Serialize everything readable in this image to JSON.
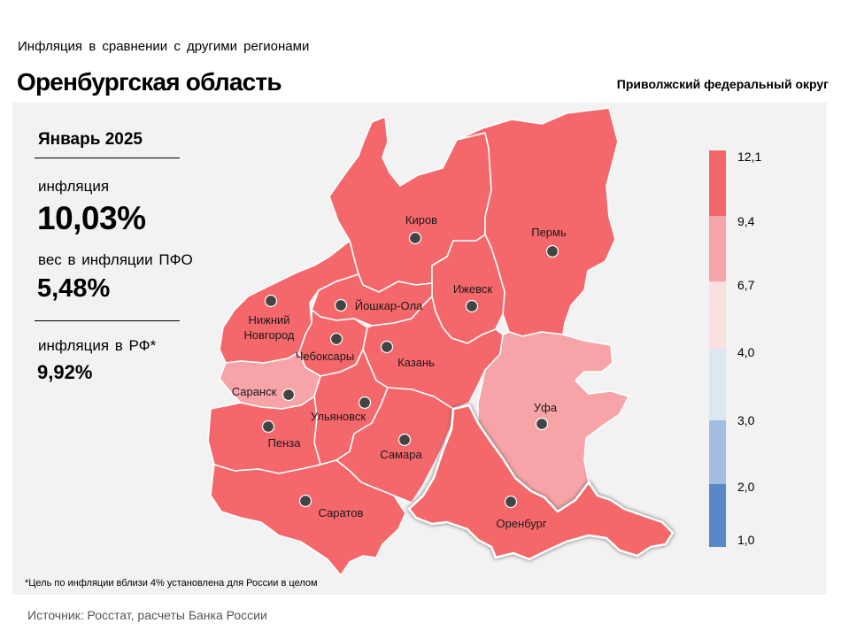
{
  "header": {
    "subtitle": "Инфляция  в сравнении  с другими  регионами",
    "title": "Оренбургская область",
    "district": "Приволжский федеральный округ"
  },
  "stats": {
    "period": "Январь 2025",
    "inflation_label": "инфляция",
    "inflation_value": "10,03%",
    "weight_label": "вес в инфляции  ПФО",
    "weight_value": "5,48%",
    "russia_label": "инфляция  в РФ*",
    "russia_value": "9,92%"
  },
  "legend": {
    "bins": [
      {
        "label": "12,1",
        "color": "#f4676b"
      },
      {
        "label": "9,4",
        "color": "#f6a4a7"
      },
      {
        "label": "6,7",
        "color": "#fadfe3"
      },
      {
        "label": "4,0",
        "color": "#dde6f3"
      },
      {
        "label": "3,0",
        "color": "#a3bde0"
      },
      {
        "label": "2,0",
        "color": "#5b87c7"
      },
      {
        "label": "1,0",
        "color": ""
      }
    ]
  },
  "colors": {
    "high": "#f4676b",
    "medium": "#f6a4a7",
    "border": "#ffffff",
    "background": "#f2f2f2"
  },
  "cities": [
    {
      "name": "Киров",
      "class": "high"
    },
    {
      "name": "Пермь",
      "class": "high"
    },
    {
      "name": "Ижевск",
      "class": "high"
    },
    {
      "name": "Йошкар-Ола",
      "class": "high"
    },
    {
      "name": "Нижний Новгород",
      "label_line1": "Нижний",
      "label_line2": "Новгород",
      "class": "high"
    },
    {
      "name": "Чебоксары",
      "class": "high"
    },
    {
      "name": "Казань",
      "class": "high"
    },
    {
      "name": "Саранск",
      "class": "medium"
    },
    {
      "name": "Ульяновск",
      "class": "high"
    },
    {
      "name": "Уфа",
      "class": "medium"
    },
    {
      "name": "Пенза",
      "class": "high"
    },
    {
      "name": "Самара",
      "class": "high"
    },
    {
      "name": "Саратов",
      "class": "high"
    },
    {
      "name": "Оренбург",
      "class": "high",
      "highlighted": true
    }
  ],
  "footnote": "*Цель по инфляции вблизи 4% установлена для России в целом",
  "source": "Источник: Росстат, расчеты Банка России"
}
